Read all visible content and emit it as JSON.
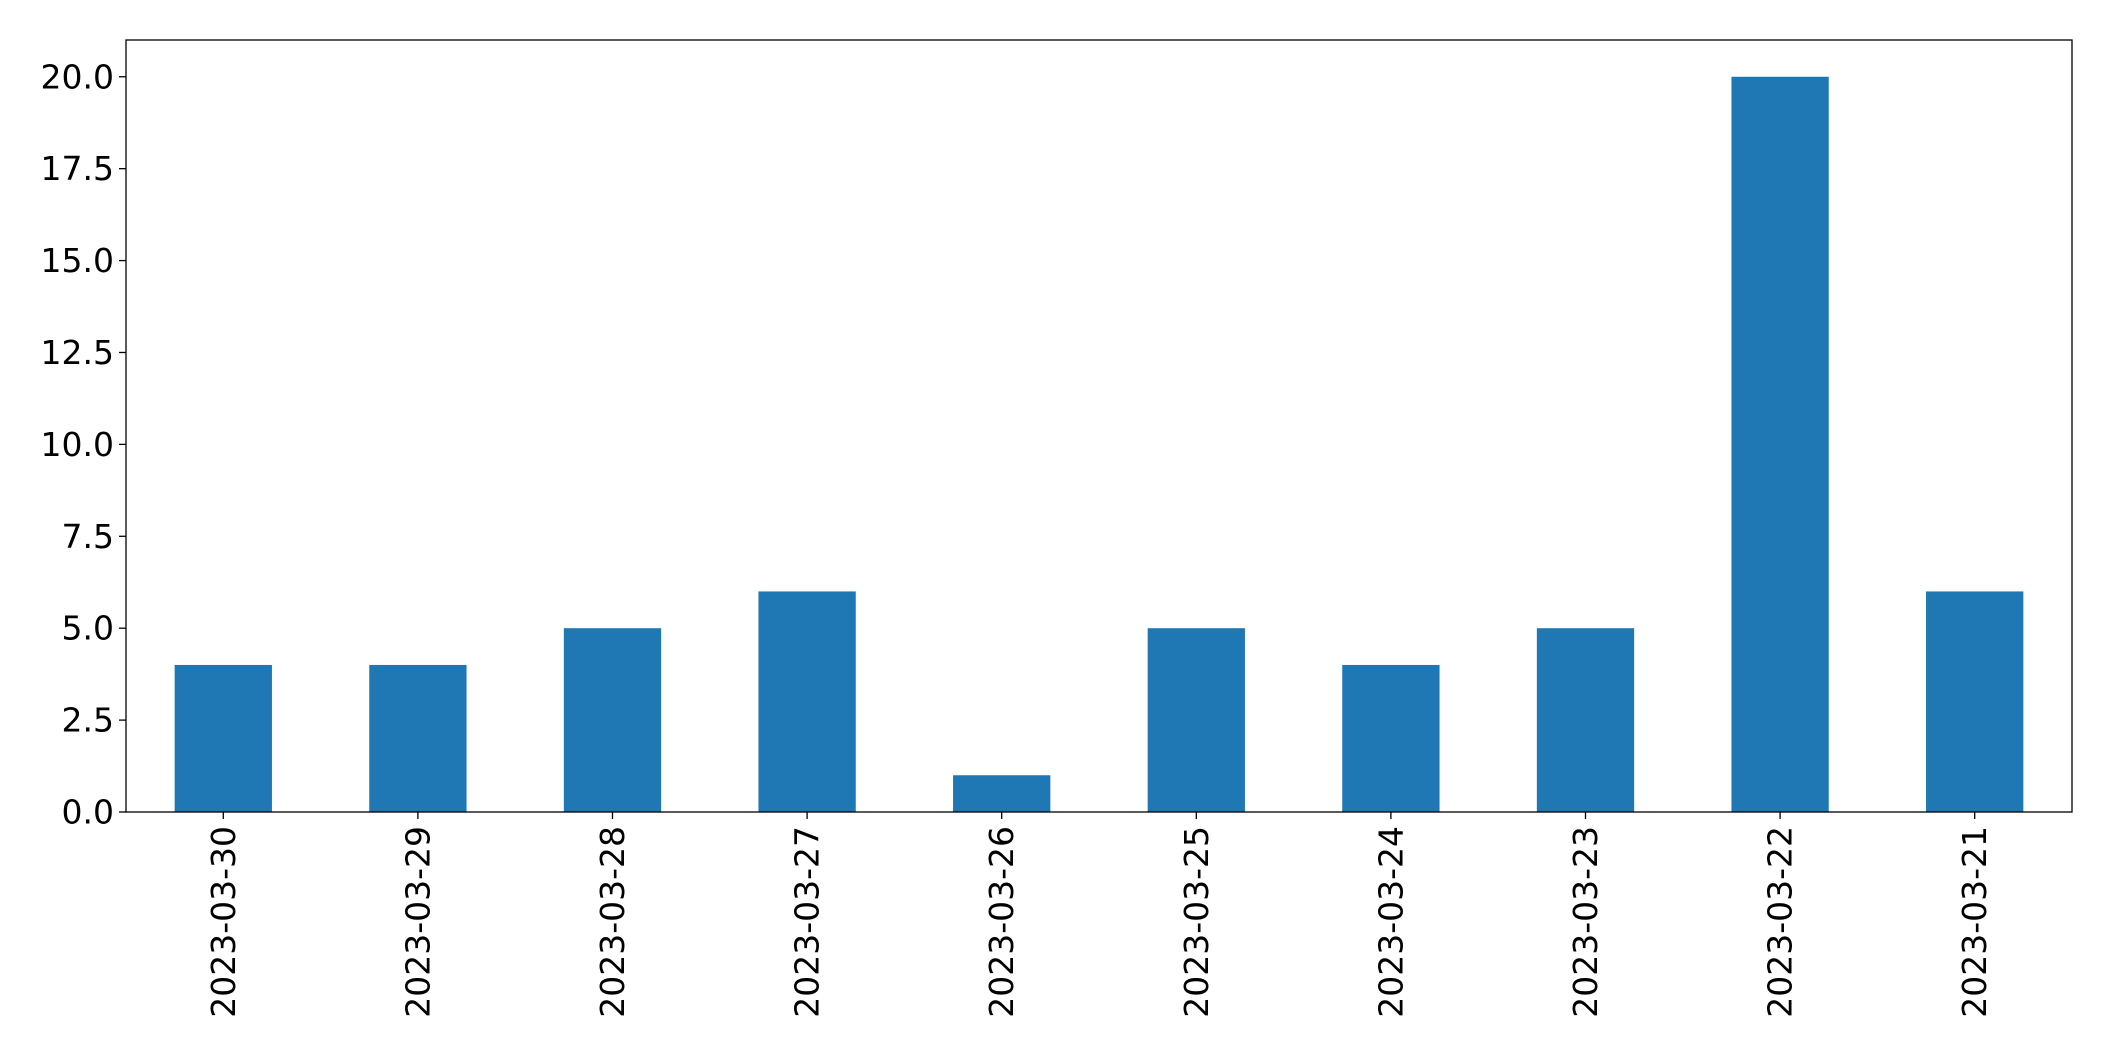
{
  "chart_data": {
    "type": "bar",
    "title": "",
    "xlabel": "",
    "ylabel": "",
    "categories": [
      "2023-03-30",
      "2023-03-29",
      "2023-03-28",
      "2023-03-27",
      "2023-03-26",
      "2023-03-25",
      "2023-03-24",
      "2023-03-23",
      "2023-03-22",
      "2023-03-21"
    ],
    "values": [
      4,
      4,
      5,
      6,
      1,
      5,
      4,
      5,
      20,
      6
    ],
    "ylim": [
      0,
      21
    ],
    "yticks": [
      0.0,
      2.5,
      5.0,
      7.5,
      10.0,
      12.5,
      15.0,
      17.5,
      20.0
    ],
    "ytick_labels": [
      "0.0",
      "2.5",
      "5.0",
      "7.5",
      "10.0",
      "12.5",
      "15.0",
      "17.5",
      "20.0"
    ],
    "bar_color": "#1f77b4",
    "grid": false,
    "legend": "none",
    "xtick_rotation": "vertical"
  }
}
